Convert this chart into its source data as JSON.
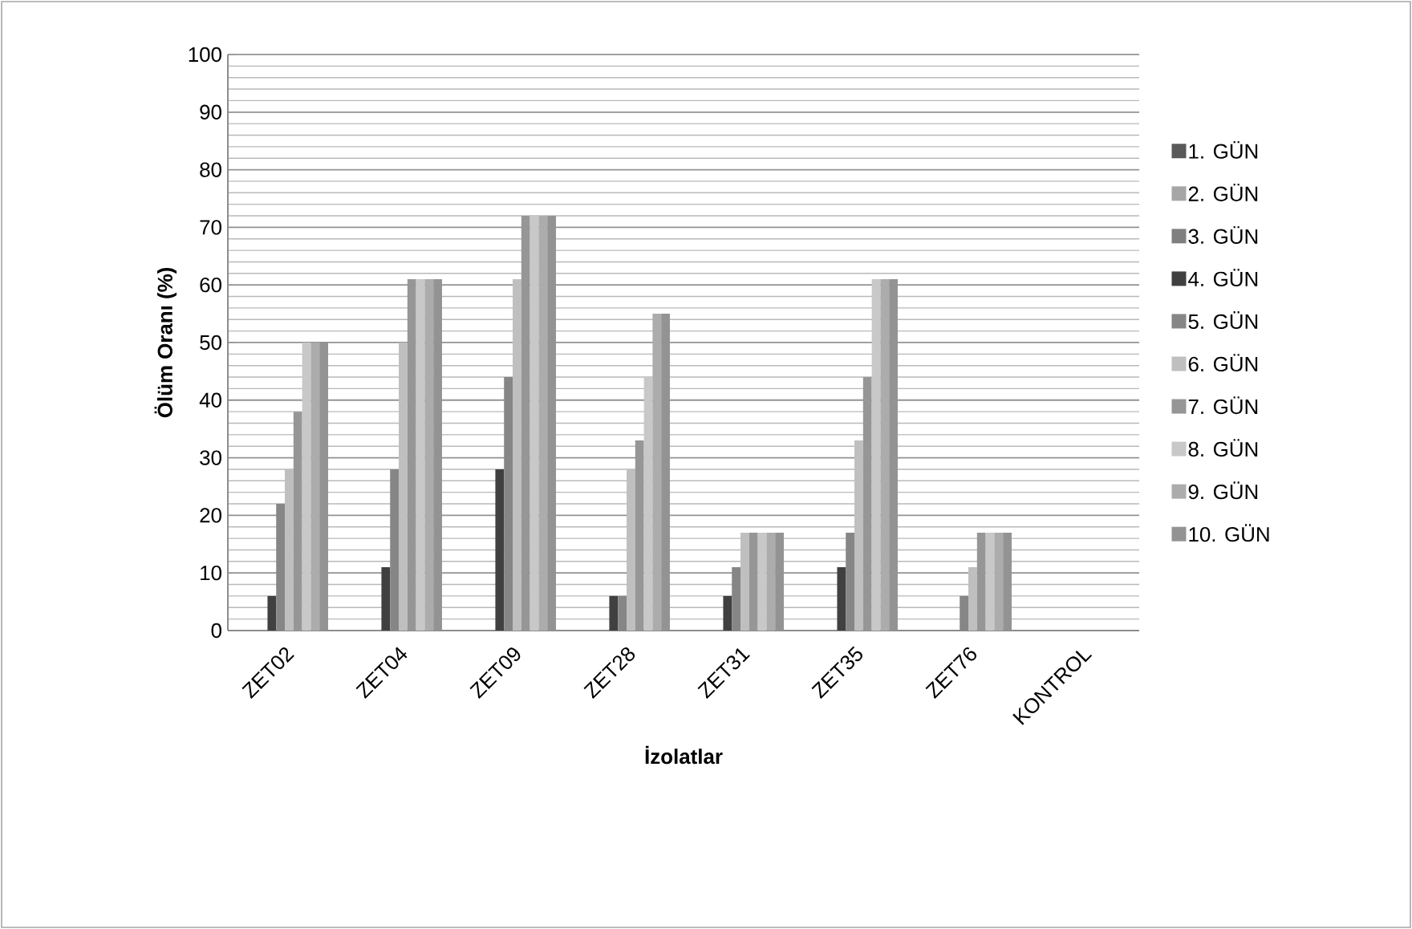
{
  "chart_data": {
    "type": "bar",
    "xlabel": "İzolatlar",
    "ylabel": "Ölüm Oranı (%)",
    "categories": [
      "ZET02",
      "ZET04",
      "ZET09",
      "ZET28",
      "ZET31",
      "ZET35",
      "ZET76",
      "KONTROL"
    ],
    "series": [
      {
        "name": "1. GÜN",
        "color": "#595959",
        "values": [
          0,
          0,
          0,
          0,
          0,
          0,
          0,
          0
        ]
      },
      {
        "name": "2. GÜN",
        "color": "#a6a6a6",
        "values": [
          0,
          0,
          0,
          0,
          0,
          0,
          0,
          0
        ]
      },
      {
        "name": "3. GÜN",
        "color": "#7f7f7f",
        "values": [
          0,
          0,
          0,
          0,
          0,
          0,
          0,
          0
        ]
      },
      {
        "name": "4. GÜN",
        "color": "#404040",
        "values": [
          6,
          11,
          28,
          6,
          6,
          11,
          0,
          0
        ]
      },
      {
        "name": "5. GÜN",
        "color": "#868686",
        "values": [
          22,
          28,
          44,
          6,
          11,
          17,
          6,
          0
        ]
      },
      {
        "name": "6. GÜN",
        "color": "#bfbfbf",
        "values": [
          28,
          50,
          61,
          28,
          17,
          33,
          11,
          0
        ]
      },
      {
        "name": "7. GÜN",
        "color": "#969696",
        "values": [
          38,
          61,
          72,
          33,
          17,
          44,
          17,
          0
        ]
      },
      {
        "name": "8. GÜN",
        "color": "#c8c8c8",
        "values": [
          50,
          61,
          72,
          44,
          17,
          61,
          17,
          0
        ]
      },
      {
        "name": "9. GÜN",
        "color": "#acacac",
        "values": [
          50,
          61,
          72,
          55,
          17,
          61,
          17,
          0
        ]
      },
      {
        "name": "10. GÜN",
        "color": "#939393",
        "values": [
          50,
          61,
          72,
          55,
          17,
          61,
          17,
          0
        ]
      }
    ],
    "ylim": [
      0,
      100
    ],
    "yticks": [
      0,
      10,
      20,
      30,
      40,
      50,
      60,
      70,
      80,
      90,
      100
    ],
    "grid": "y",
    "legend": "right"
  }
}
